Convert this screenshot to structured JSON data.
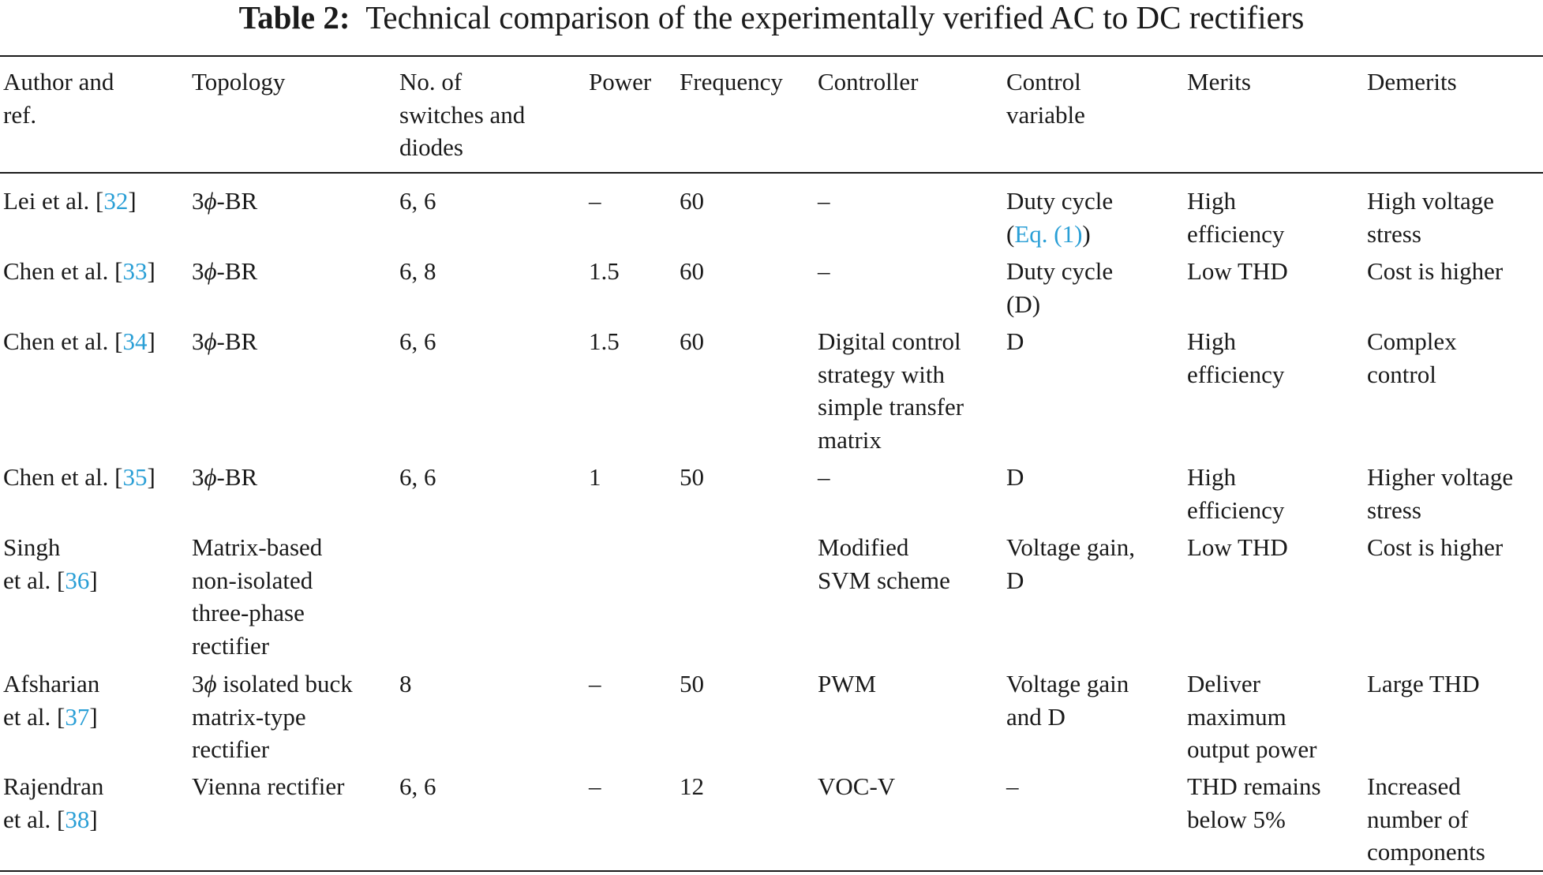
{
  "caption": {
    "label": "Table 2:",
    "title": "Technical comparison of the experimentally verified AC to DC rectifiers"
  },
  "headers": {
    "author": [
      "Author and",
      "ref."
    ],
    "topology": [
      "Topology"
    ],
    "switches": [
      "No. of",
      "switches and",
      "diodes"
    ],
    "power": [
      "Power"
    ],
    "frequency": [
      "Frequency"
    ],
    "controller": [
      "Controller"
    ],
    "control_variable": [
      "Control",
      "variable"
    ],
    "merits": [
      "Merits"
    ],
    "demerits": [
      "Demerits"
    ]
  },
  "rows": [
    {
      "author_pre": "Lei et al. [",
      "author_ref": "32",
      "author_post": "]",
      "topology_num": "3",
      "topology_phi": "ϕ",
      "topology_rest": "-BR",
      "switches": "6, 6",
      "power": "–",
      "frequency": "60",
      "controller": "–",
      "cv_line1": "Duty cycle",
      "cv_pre": "(",
      "cv_ref": "Eq. (1)",
      "cv_post": ")",
      "merits": [
        "High",
        "efficiency"
      ],
      "demerits": [
        "High voltage",
        "stress"
      ]
    },
    {
      "author_pre": "Chen et al. [",
      "author_ref": "33",
      "author_post": "]",
      "topology_num": "3",
      "topology_phi": "ϕ",
      "topology_rest": "-BR",
      "switches": "6, 8",
      "power": "1.5",
      "frequency": "60",
      "controller": "–",
      "control_variable": [
        "Duty cycle",
        "(D)"
      ],
      "merits": [
        "Low THD"
      ],
      "demerits": [
        "Cost is higher"
      ]
    },
    {
      "author_pre": "Chen et al. [",
      "author_ref": "34",
      "author_post": "]",
      "topology_num": "3",
      "topology_phi": "ϕ",
      "topology_rest": "-BR",
      "switches": "6, 6",
      "power": "1.5",
      "frequency": "60",
      "controller": [
        "Digital control",
        "strategy with",
        "simple transfer",
        "matrix"
      ],
      "control_variable": [
        "D"
      ],
      "merits": [
        "High",
        "efficiency"
      ],
      "demerits": [
        "Complex",
        "control"
      ]
    },
    {
      "author_pre": "Chen et al. [",
      "author_ref": "35",
      "author_post": "]",
      "topology_num": "3",
      "topology_phi": "ϕ",
      "topology_rest": "-BR",
      "switches": "6, 6",
      "power": "1",
      "frequency": "50",
      "controller": "–",
      "control_variable": [
        "D"
      ],
      "merits": [
        "High",
        "efficiency"
      ],
      "demerits": [
        "Higher voltage",
        "stress"
      ]
    },
    {
      "author_line1": "Singh",
      "author_pre": "et al. [",
      "author_ref": "36",
      "author_post": "]",
      "topology": [
        "Matrix-based",
        "non-isolated",
        "three-phase",
        "rectifier"
      ],
      "controller": [
        "Modified",
        "SVM scheme"
      ],
      "control_variable": [
        "Voltage gain,",
        "D"
      ],
      "merits": [
        "Low THD"
      ],
      "demerits": [
        "Cost is higher"
      ]
    },
    {
      "author_line1": "Afsharian",
      "author_pre": "et al. [",
      "author_ref": "37",
      "author_post": "]",
      "topology_num": "3",
      "topology_phi": "ϕ",
      "topology_rest": " isolated buck",
      "topology_more": [
        "matrix-type",
        "rectifier"
      ],
      "switches": "8",
      "power": "–",
      "frequency": "50",
      "controller": "PWM",
      "control_variable": [
        "Voltage gain",
        "and D"
      ],
      "merits": [
        "Deliver",
        "maximum",
        "output power"
      ],
      "demerits": [
        "Large THD"
      ]
    },
    {
      "author_line1": "Rajendran",
      "author_pre": "et al. [",
      "author_ref": "38",
      "author_post": "]",
      "topology": [
        "Vienna rectifier"
      ],
      "switches": "6, 6",
      "power": "–",
      "frequency": "12",
      "controller": "VOC-V",
      "control_variable": [
        "–"
      ],
      "merits": [
        "THD remains",
        "below 5%"
      ],
      "demerits": [
        "Increased",
        "number of",
        "components"
      ]
    }
  ]
}
